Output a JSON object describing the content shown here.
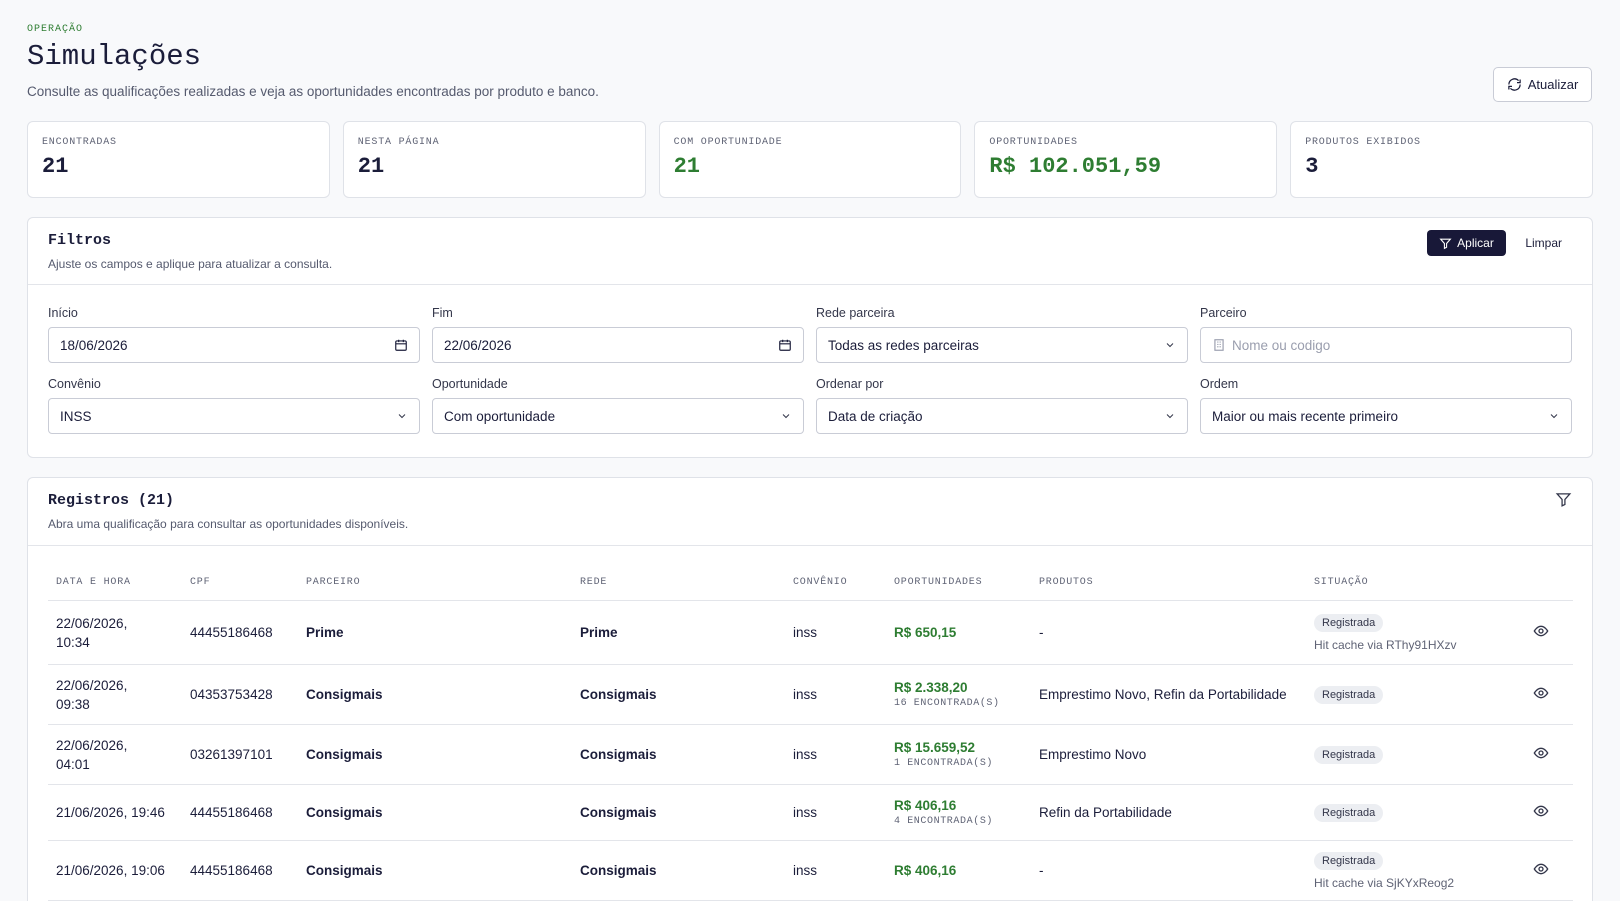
{
  "header": {
    "eyebrow": "OPERAÇÃO",
    "title": "Simulações",
    "subtitle": "Consulte as qualificações realizadas e veja as oportunidades encontradas por produto e banco.",
    "refresh": "Atualizar"
  },
  "stats": [
    {
      "label": "ENCONTRADAS",
      "value": "21"
    },
    {
      "label": "NESTA PÁGINA",
      "value": "21"
    },
    {
      "label": "COM OPORTUNIDADE",
      "value": "21"
    },
    {
      "label": "OPORTUNIDADES",
      "value": "R$ 102.051,59"
    },
    {
      "label": "PRODUTOS EXIBIDOS",
      "value": "3"
    }
  ],
  "filters": {
    "title": "Filtros",
    "subtitle": "Ajuste os campos e aplique para atualizar a consulta.",
    "apply": "Aplicar",
    "clear": "Limpar",
    "fields": [
      {
        "label": "Início",
        "value": "18/06/2026"
      },
      {
        "label": "Fim",
        "value": "22/06/2026"
      },
      {
        "label": "Rede parceira",
        "value": "Todas as redes parceiras"
      },
      {
        "label": "Parceiro",
        "placeholder": "Nome ou codigo"
      },
      {
        "label": "Convênio",
        "value": "INSS"
      },
      {
        "label": "Oportunidade",
        "value": "Com oportunidade"
      },
      {
        "label": "Ordenar por",
        "value": "Data de criação"
      },
      {
        "label": "Ordem",
        "value": "Maior ou mais recente primeiro"
      }
    ]
  },
  "records": {
    "title": "Registros (21)",
    "subtitle": "Abra uma qualificação para consultar as oportunidades disponíveis.",
    "columns": [
      "DATA E HORA",
      "CPF",
      "PARCEIRO",
      "REDE",
      "CONVÊNIO",
      "OPORTUNIDADES",
      "PRODUTOS",
      "SITUAÇÃO"
    ],
    "rows": [
      {
        "date": "22/06/2026,\n10:34",
        "cpf": "44455186468",
        "partner": "Prime",
        "network": "Prime",
        "agreement": "inss",
        "amount": "R$ 650,15",
        "products": "-",
        "status": "Registrada",
        "note": "Hit cache via RThy91HXzv"
      },
      {
        "date": "22/06/2026,\n09:38",
        "cpf": "04353753428",
        "partner": "Consigmais",
        "network": "Consigmais",
        "agreement": "inss",
        "amount": "R$ 2.338,20",
        "found": "16 ENCONTRADA(S)",
        "products": "Emprestimo Novo, Refin da Portabilidade",
        "status": "Registrada"
      },
      {
        "date": "22/06/2026,\n04:01",
        "cpf": "03261397101",
        "partner": "Consigmais",
        "network": "Consigmais",
        "agreement": "inss",
        "amount": "R$ 15.659,52",
        "found": "1 ENCONTRADA(S)",
        "products": "Emprestimo Novo",
        "status": "Registrada"
      },
      {
        "date": "21/06/2026, 19:46",
        "cpf": "44455186468",
        "partner": "Consigmais",
        "network": "Consigmais",
        "agreement": "inss",
        "amount": "R$ 406,16",
        "found": "4 ENCONTRADA(S)",
        "products": "Refin da Portabilidade",
        "status": "Registrada"
      },
      {
        "date": "21/06/2026, 19:06",
        "cpf": "44455186468",
        "partner": "Consigmais",
        "network": "Consigmais",
        "agreement": "inss",
        "amount": "R$ 406,16",
        "products": "-",
        "status": "Registrada",
        "note": "Hit cache via SjKYxReog2"
      }
    ]
  }
}
